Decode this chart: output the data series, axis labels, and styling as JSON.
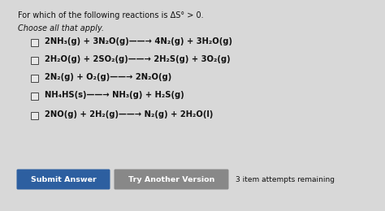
{
  "background_color": "#d8d8d8",
  "title": "For which of the following reactions is ΔS° > 0.",
  "subtitle": "Choose all that apply.",
  "reactions": [
    "2NH₃(g) + 3N₂O(g)——→ 4N₂(g) + 3H₂O(g)",
    "2H₂O(g) + 2SO₂(g)——→ 2H₂S(g) + 3O₂(g)",
    "2N₂(g) + O₂(g)——→ 2N₂O(g)",
    "NH₄HS(s)——→ NH₃(g) + H₂S(g)",
    "2NO(g) + 2H₂(g)——→ N₂(g) + 2H₂O(l)"
  ],
  "button1_text": "Submit Answer",
  "button1_color": "#2d5fa0",
  "button2_text": "Try Another Version",
  "button2_color": "#888888",
  "footer_text": "3 item attempts remaining",
  "text_color": "#111111",
  "button_text_color": "#ffffff",
  "title_fontsize": 7.0,
  "subtitle_fontsize": 7.0,
  "reaction_fontsize": 7.2
}
